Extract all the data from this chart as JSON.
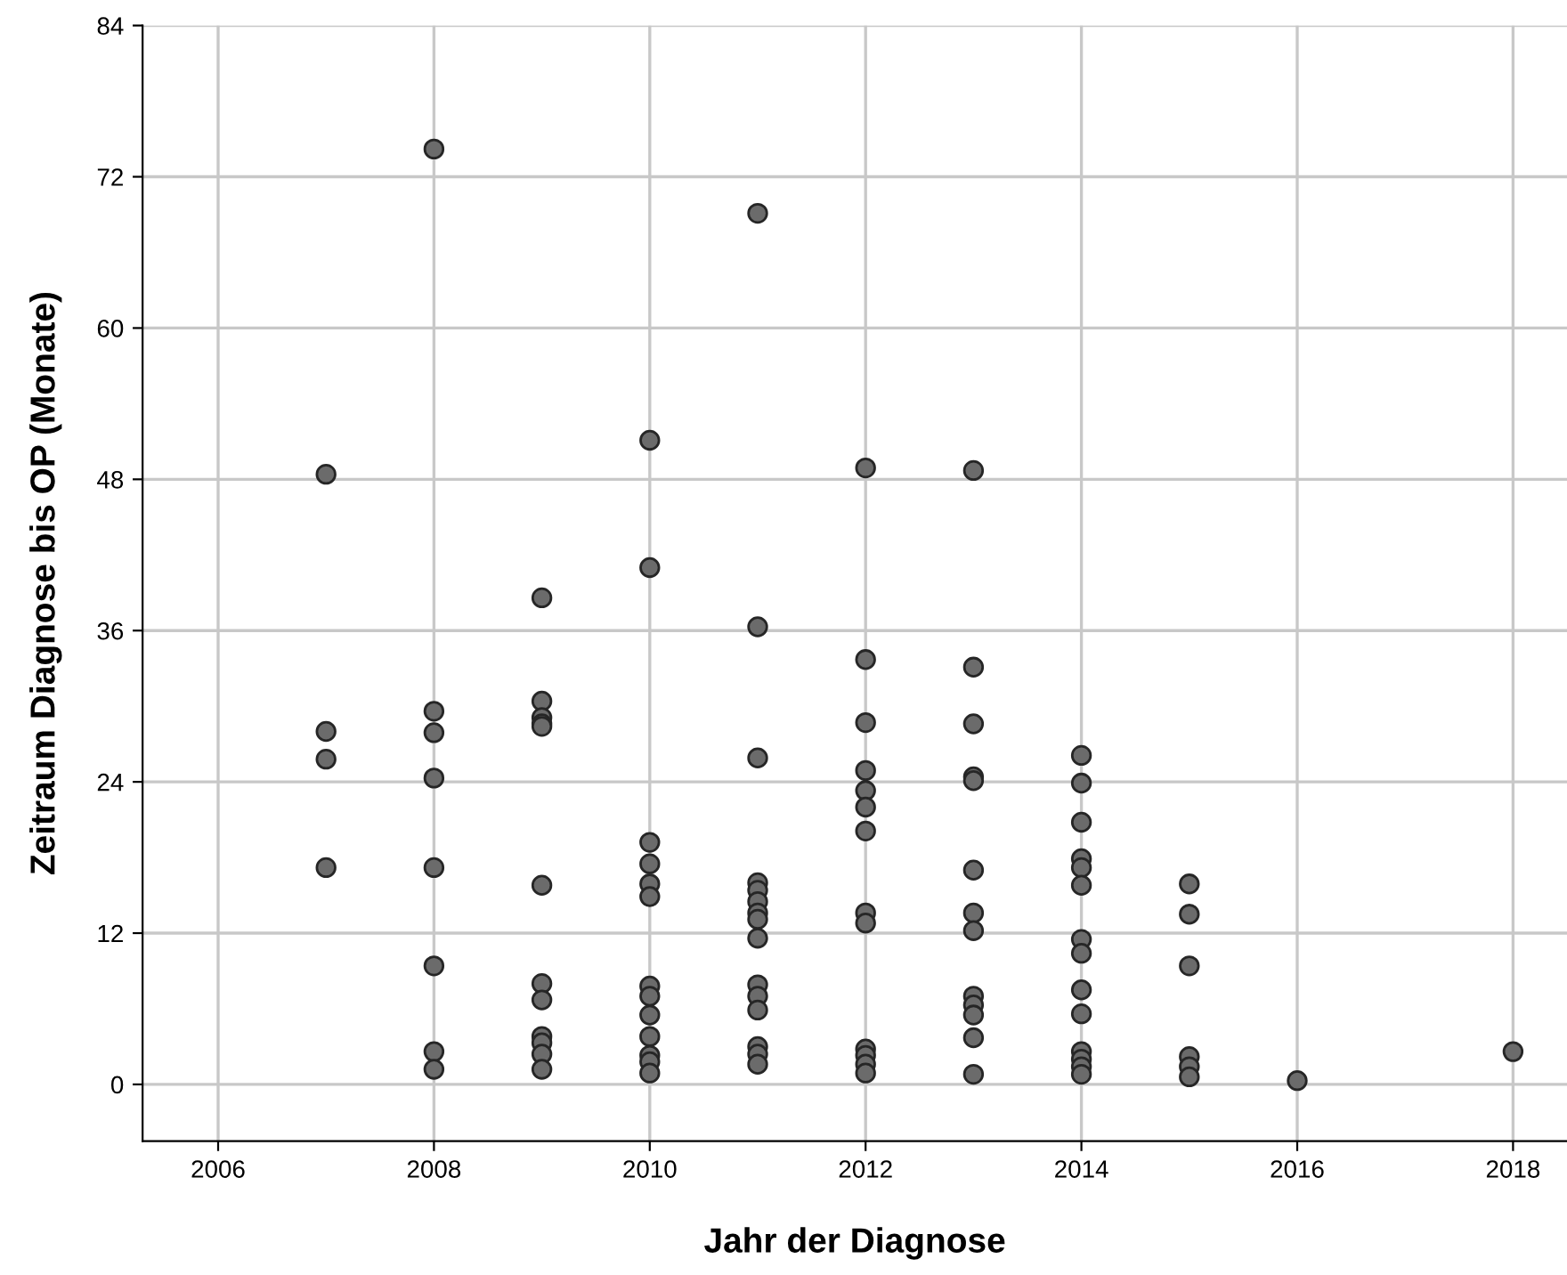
{
  "chart_data": {
    "type": "scatter",
    "xlabel": "Jahr der Diagnose",
    "ylabel": "Zeitraum Diagnose bis OP (Monate)",
    "x": [
      2007,
      2007,
      2007,
      2007,
      2008,
      2008,
      2008,
      2008,
      2008,
      2008,
      2008,
      2008,
      2009,
      2009,
      2009,
      2009,
      2009,
      2009,
      2009,
      2009,
      2009,
      2009,
      2009,
      2009,
      2010,
      2010,
      2010,
      2010,
      2010,
      2010,
      2010,
      2010,
      2010,
      2010,
      2010,
      2010,
      2010,
      2011,
      2011,
      2011,
      2011,
      2011,
      2011,
      2011,
      2011,
      2011,
      2011,
      2011,
      2011,
      2011,
      2011,
      2011,
      2012,
      2012,
      2012,
      2012,
      2012,
      2012,
      2012,
      2012,
      2012,
      2012,
      2012,
      2012,
      2012,
      2013,
      2013,
      2013,
      2013,
      2013,
      2013,
      2013,
      2013,
      2013,
      2013,
      2013,
      2013,
      2013,
      2014,
      2014,
      2014,
      2014,
      2014,
      2014,
      2014,
      2014,
      2014,
      2014,
      2014,
      2014,
      2014,
      2014,
      2015,
      2015,
      2015,
      2015,
      2015,
      2015,
      2016,
      2018
    ],
    "values": [
      48.4,
      28.0,
      25.8,
      17.2,
      74.2,
      29.6,
      27.9,
      24.3,
      17.2,
      9.4,
      2.6,
      1.2,
      38.6,
      30.4,
      29.1,
      28.6,
      28.4,
      15.8,
      8.0,
      6.7,
      3.8,
      3.3,
      2.4,
      1.2,
      51.1,
      41.0,
      19.2,
      17.5,
      15.9,
      14.9,
      7.8,
      7.0,
      5.5,
      3.8,
      2.3,
      1.8,
      0.9,
      69.1,
      36.3,
      25.9,
      16.0,
      15.4,
      14.5,
      13.6,
      13.1,
      11.6,
      7.9,
      7.0,
      5.9,
      3.0,
      2.4,
      1.6,
      48.9,
      33.7,
      28.7,
      24.9,
      23.3,
      22.0,
      20.1,
      13.6,
      12.8,
      2.8,
      2.3,
      1.6,
      0.9,
      48.7,
      33.1,
      28.6,
      24.4,
      24.1,
      17.0,
      13.6,
      12.2,
      7.0,
      6.3,
      5.5,
      3.7,
      0.8,
      26.1,
      23.9,
      20.8,
      17.9,
      17.2,
      15.8,
      11.5,
      10.4,
      7.5,
      5.6,
      2.6,
      2.0,
      1.4,
      0.8,
      15.9,
      13.5,
      9.4,
      2.2,
      1.4,
      0.6,
      0.3,
      2.6
    ],
    "color": "#6b6b6b",
    "marker": "circle",
    "grid": true,
    "xlim": [
      2005.3,
      2018.5
    ],
    "xticks": [
      2006,
      2008,
      2010,
      2012,
      2014,
      2016,
      2018
    ],
    "ylim": [
      -4.5,
      84
    ],
    "yticks": [
      0,
      12,
      24,
      36,
      48,
      60,
      72,
      84
    ]
  }
}
